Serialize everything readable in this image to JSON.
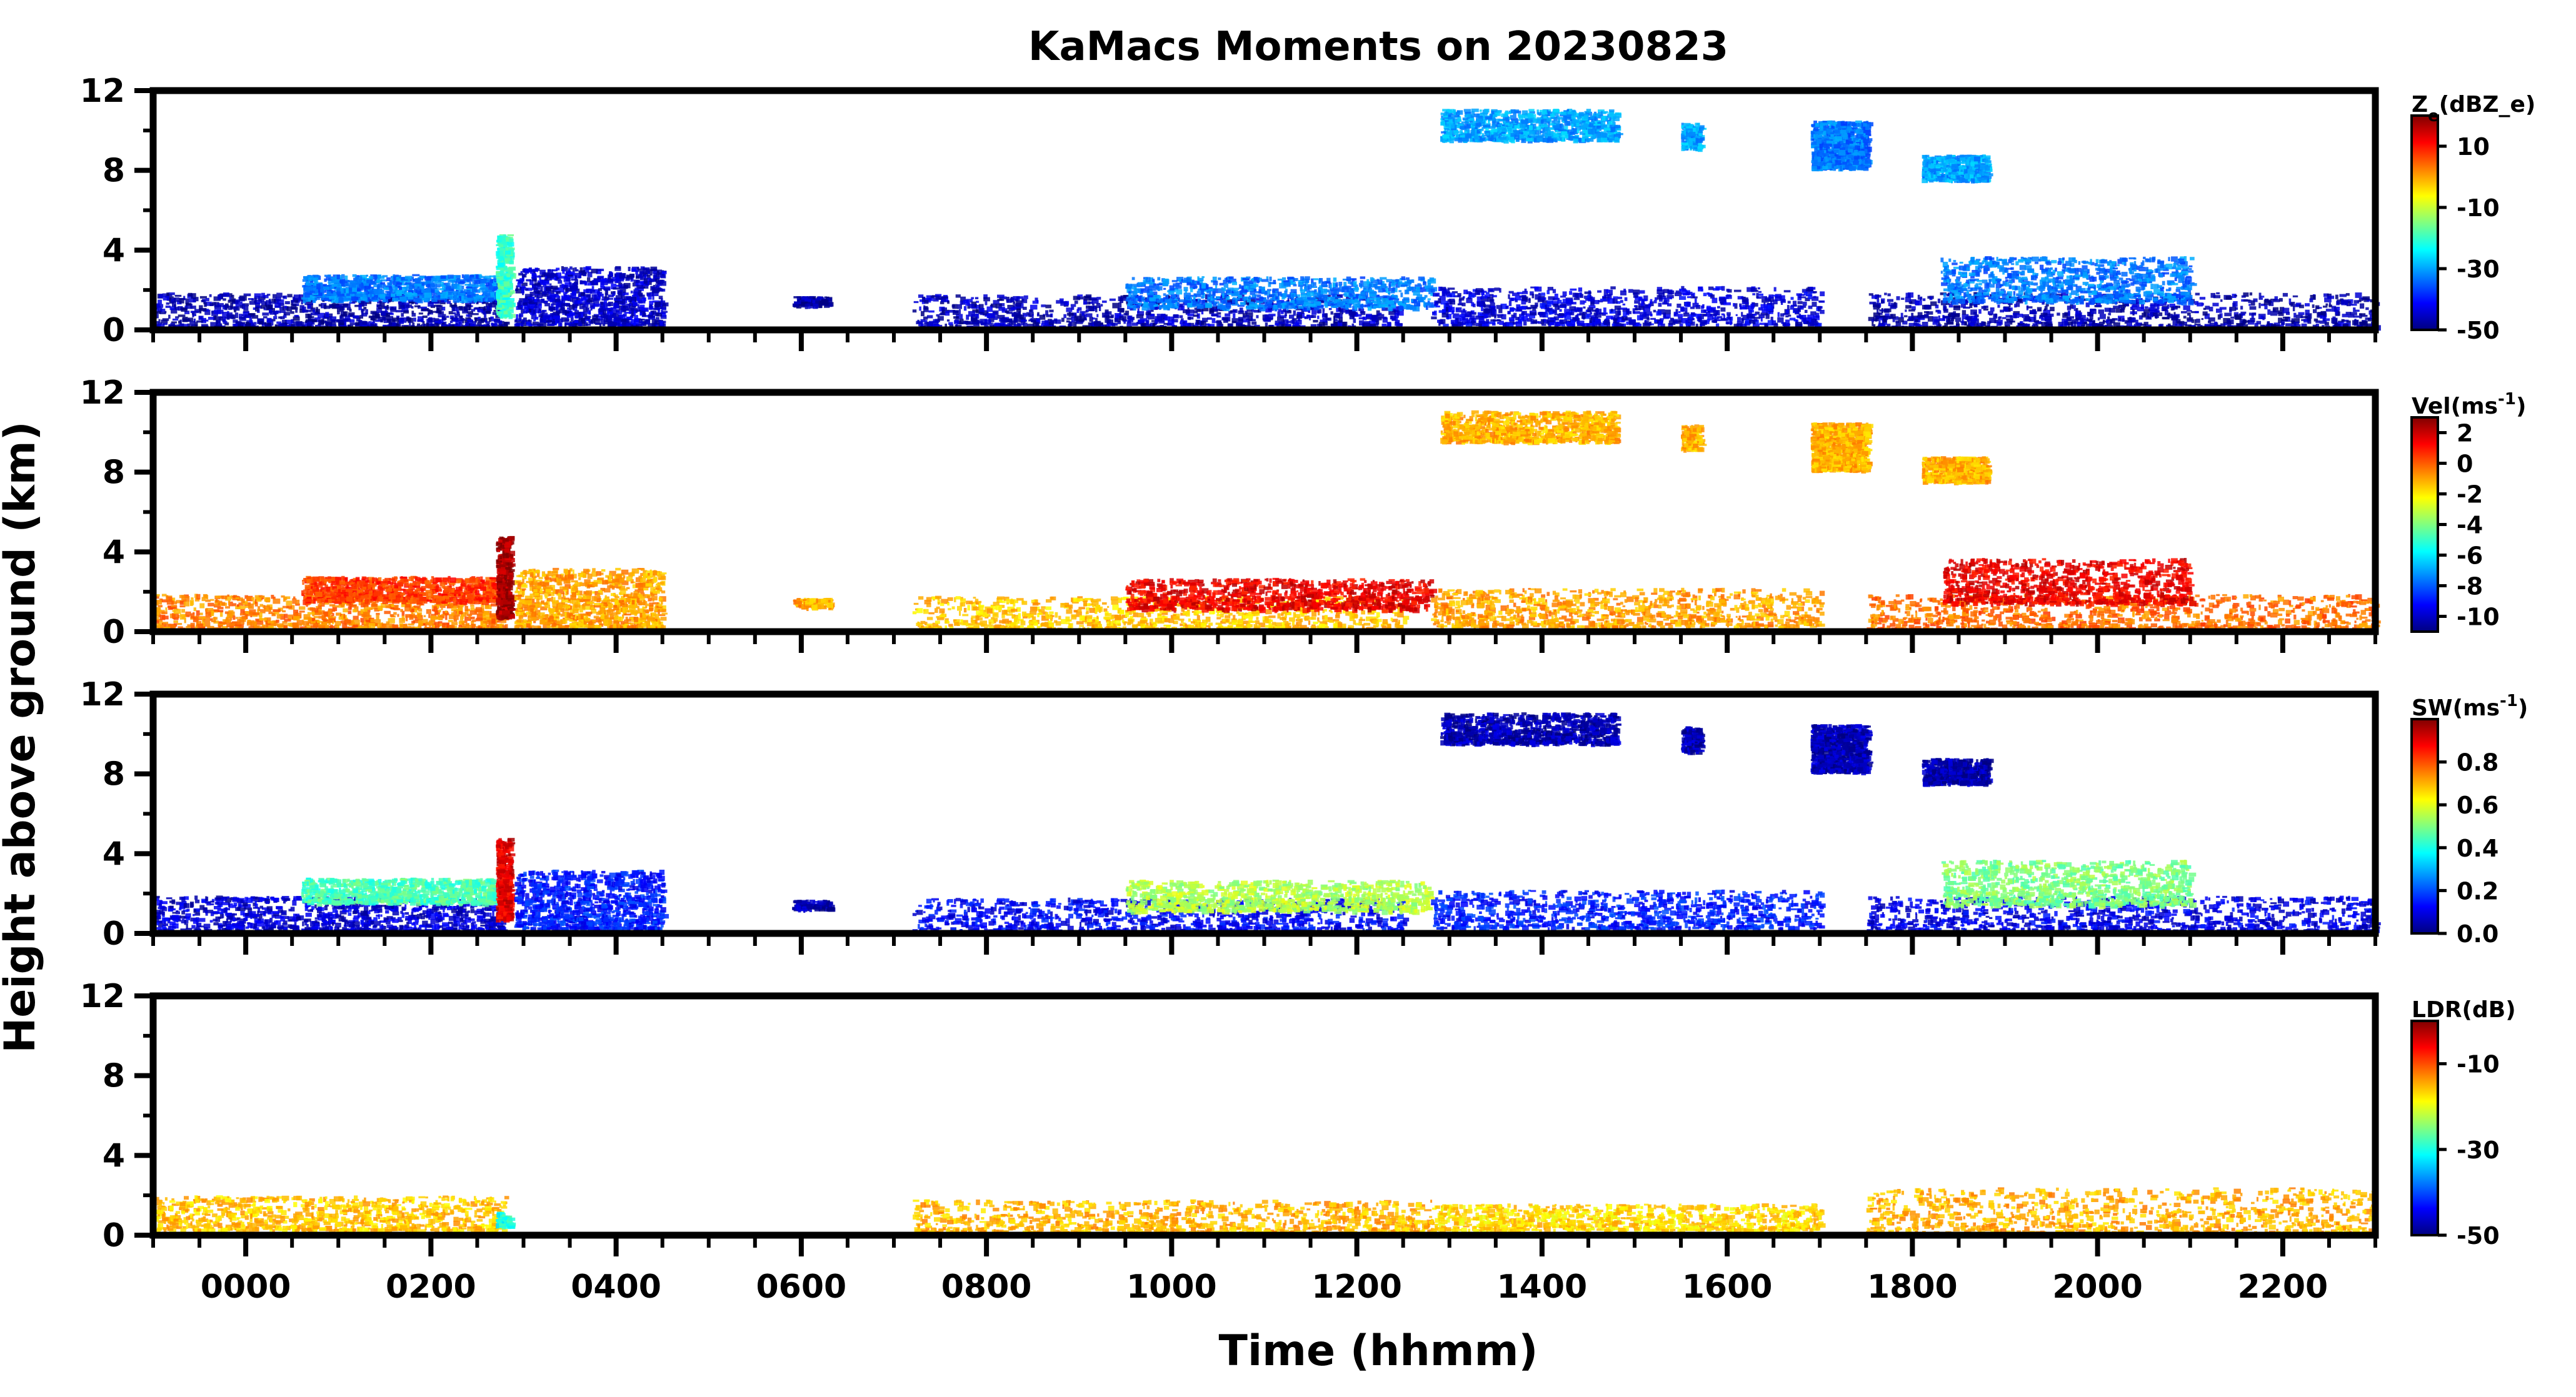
{
  "title": "KaMacs Moments on 20230823",
  "ylabel": "Height above ground (km)",
  "xlabel": "Time (hhmm)",
  "chart_data": [
    {
      "type": "heatmap",
      "variable": "Ze",
      "colorbar_label": "Z_e(dBZ_e)",
      "colorbar_ticks": [
        10,
        -10,
        -30,
        -50
      ],
      "color_range": [
        -50,
        20
      ],
      "x_range_hours": [
        -1.0,
        23.0
      ],
      "xticks": [
        "0000",
        "0200",
        "0400",
        "0600",
        "0800",
        "1000",
        "1200",
        "1400",
        "1600",
        "1800",
        "2000",
        "2200"
      ],
      "ylim": [
        0,
        12
      ],
      "yticks": [
        0,
        4,
        8,
        12
      ],
      "echo_regions": [
        {
          "t0": -1.0,
          "t1": 2.8,
          "h0": 0.2,
          "h1": 1.9,
          "value": -47
        },
        {
          "t0": 0.6,
          "t1": 2.8,
          "h0": 1.6,
          "h1": 2.8,
          "value": -33
        },
        {
          "t0": 2.7,
          "t1": 2.85,
          "h0": 0.8,
          "h1": 4.8,
          "value": -20
        },
        {
          "t0": 2.9,
          "t1": 4.5,
          "h0": 0.3,
          "h1": 3.2,
          "value": -45
        },
        {
          "t0": 5.9,
          "t1": 6.3,
          "h0": 1.3,
          "h1": 1.7,
          "value": -48
        },
        {
          "t0": 7.2,
          "t1": 12.5,
          "h0": 0.2,
          "h1": 1.8,
          "value": -46
        },
        {
          "t0": 9.5,
          "t1": 12.8,
          "h0": 1.2,
          "h1": 2.7,
          "value": -33
        },
        {
          "t0": 12.8,
          "t1": 17.0,
          "h0": 0.3,
          "h1": 2.2,
          "value": -44
        },
        {
          "t0": 12.9,
          "t1": 14.8,
          "h0": 9.6,
          "h1": 11.1,
          "value": -30
        },
        {
          "t0": 15.5,
          "t1": 15.7,
          "h0": 9.2,
          "h1": 10.4,
          "value": -30
        },
        {
          "t0": 16.9,
          "t1": 17.5,
          "h0": 8.2,
          "h1": 10.5,
          "value": -33
        },
        {
          "t0": 18.1,
          "t1": 18.8,
          "h0": 7.6,
          "h1": 8.8,
          "value": -30
        },
        {
          "t0": 17.5,
          "t1": 23.0,
          "h0": 0.2,
          "h1": 1.9,
          "value": -47
        },
        {
          "t0": 18.3,
          "t1": 21.0,
          "h0": 1.5,
          "h1": 3.7,
          "value": -33
        }
      ]
    },
    {
      "type": "heatmap",
      "variable": "Vel",
      "colorbar_label": "Vel(ms^-1)",
      "colorbar_ticks": [
        2,
        0,
        -2,
        -4,
        -6,
        -8,
        -10
      ],
      "color_range": [
        -11,
        3
      ],
      "x_range_hours": [
        -1.0,
        23.0
      ],
      "xticks": [
        "0000",
        "0200",
        "0400",
        "0600",
        "0800",
        "1000",
        "1200",
        "1400",
        "1600",
        "1800",
        "2000",
        "2200"
      ],
      "ylim": [
        0,
        12
      ],
      "yticks": [
        0,
        4,
        8,
        12
      ],
      "echo_regions": [
        {
          "t0": -1.0,
          "t1": 2.8,
          "h0": 0.2,
          "h1": 1.9,
          "value": -0.5
        },
        {
          "t0": 0.6,
          "t1": 2.8,
          "h0": 1.6,
          "h1": 2.8,
          "value": 0.5
        },
        {
          "t0": 2.7,
          "t1": 2.85,
          "h0": 0.8,
          "h1": 4.8,
          "value": 2.5
        },
        {
          "t0": 2.9,
          "t1": 4.5,
          "h0": 0.3,
          "h1": 3.2,
          "value": -1
        },
        {
          "t0": 5.9,
          "t1": 6.3,
          "h0": 1.3,
          "h1": 1.7,
          "value": -1
        },
        {
          "t0": 7.2,
          "t1": 12.5,
          "h0": 0.2,
          "h1": 1.8,
          "value": -1.5
        },
        {
          "t0": 9.5,
          "t1": 12.8,
          "h0": 1.2,
          "h1": 2.7,
          "value": 1.5
        },
        {
          "t0": 12.8,
          "t1": 17.0,
          "h0": 0.3,
          "h1": 2.2,
          "value": -1
        },
        {
          "t0": 12.9,
          "t1": 14.8,
          "h0": 9.6,
          "h1": 11.1,
          "value": -1.2
        },
        {
          "t0": 15.5,
          "t1": 15.7,
          "h0": 9.2,
          "h1": 10.4,
          "value": -1.2
        },
        {
          "t0": 16.9,
          "t1": 17.5,
          "h0": 8.2,
          "h1": 10.5,
          "value": -1.2
        },
        {
          "t0": 18.1,
          "t1": 18.8,
          "h0": 7.6,
          "h1": 8.8,
          "value": -1.2
        },
        {
          "t0": 17.5,
          "t1": 23.0,
          "h0": 0.2,
          "h1": 1.9,
          "value": -0.3
        },
        {
          "t0": 18.3,
          "t1": 21.0,
          "h0": 1.5,
          "h1": 3.7,
          "value": 1.5
        }
      ]
    },
    {
      "type": "heatmap",
      "variable": "SW",
      "colorbar_label": "SW(ms^-1)",
      "colorbar_ticks": [
        0.8,
        0.6,
        0.4,
        0.2,
        0.0
      ],
      "color_range": [
        0,
        1.0
      ],
      "x_range_hours": [
        -1.0,
        23.0
      ],
      "xticks": [
        "0000",
        "0200",
        "0400",
        "0600",
        "0800",
        "1000",
        "1200",
        "1400",
        "1600",
        "1800",
        "2000",
        "2200"
      ],
      "ylim": [
        0,
        12
      ],
      "yticks": [
        0,
        4,
        8,
        12
      ],
      "echo_regions": [
        {
          "t0": -1.0,
          "t1": 2.8,
          "h0": 0.2,
          "h1": 1.9,
          "value": 0.08
        },
        {
          "t0": 0.6,
          "t1": 2.8,
          "h0": 1.6,
          "h1": 2.8,
          "value": 0.45
        },
        {
          "t0": 2.7,
          "t1": 2.85,
          "h0": 0.8,
          "h1": 4.8,
          "value": 0.9
        },
        {
          "t0": 2.9,
          "t1": 4.5,
          "h0": 0.3,
          "h1": 3.2,
          "value": 0.15
        },
        {
          "t0": 5.9,
          "t1": 6.3,
          "h0": 1.3,
          "h1": 1.7,
          "value": 0.05
        },
        {
          "t0": 7.2,
          "t1": 12.5,
          "h0": 0.2,
          "h1": 1.8,
          "value": 0.12
        },
        {
          "t0": 9.5,
          "t1": 12.8,
          "h0": 1.2,
          "h1": 2.7,
          "value": 0.55
        },
        {
          "t0": 12.8,
          "t1": 17.0,
          "h0": 0.3,
          "h1": 2.2,
          "value": 0.15
        },
        {
          "t0": 12.9,
          "t1": 14.8,
          "h0": 9.6,
          "h1": 11.1,
          "value": 0.05
        },
        {
          "t0": 15.5,
          "t1": 15.7,
          "h0": 9.2,
          "h1": 10.4,
          "value": 0.05
        },
        {
          "t0": 16.9,
          "t1": 17.5,
          "h0": 8.2,
          "h1": 10.5,
          "value": 0.05
        },
        {
          "t0": 18.1,
          "t1": 18.8,
          "h0": 7.6,
          "h1": 8.8,
          "value": 0.05
        },
        {
          "t0": 17.5,
          "t1": 23.0,
          "h0": 0.2,
          "h1": 1.9,
          "value": 0.1
        },
        {
          "t0": 18.3,
          "t1": 21.0,
          "h0": 1.5,
          "h1": 3.7,
          "value": 0.5
        }
      ]
    },
    {
      "type": "heatmap",
      "variable": "LDR",
      "colorbar_label": "LDR(dB)",
      "colorbar_ticks": [
        -10,
        -30,
        -50
      ],
      "color_range": [
        -50,
        0
      ],
      "x_range_hours": [
        -1.0,
        23.0
      ],
      "xticks": [
        "0000",
        "0200",
        "0400",
        "0600",
        "0800",
        "1000",
        "1200",
        "1400",
        "1600",
        "1800",
        "2000",
        "2200"
      ],
      "ylim": [
        0,
        12
      ],
      "yticks": [
        0,
        4,
        8,
        12
      ],
      "echo_regions": [
        {
          "t0": -1.0,
          "t1": 2.8,
          "h0": 0.3,
          "h1": 2.0,
          "value": -16
        },
        {
          "t0": 2.7,
          "t1": 2.85,
          "h0": 0.5,
          "h1": 1.2,
          "value": -30
        },
        {
          "t0": 7.2,
          "t1": 12.8,
          "h0": 0.2,
          "h1": 1.8,
          "value": -15
        },
        {
          "t0": 12.8,
          "t1": 17.0,
          "h0": 0.3,
          "h1": 1.6,
          "value": -17
        },
        {
          "t0": 17.5,
          "t1": 23.0,
          "h0": 0.2,
          "h1": 2.4,
          "value": -15
        }
      ]
    }
  ]
}
